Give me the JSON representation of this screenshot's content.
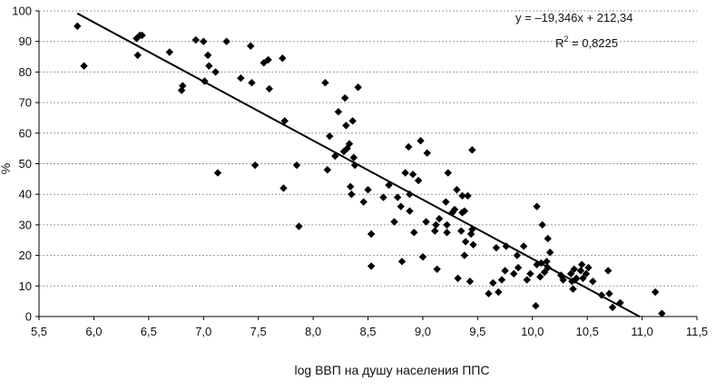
{
  "chart_data": {
    "type": "scatter",
    "xlabel": "log ВВП на душу населения ППС",
    "ylabel": "%",
    "xlim": [
      5.5,
      11.5
    ],
    "ylim": [
      0,
      100
    ],
    "x_ticks": [
      "5,5",
      "6,0",
      "6,5",
      "7,0",
      "7,5",
      "8,0",
      "8,5",
      "9,0",
      "9,5",
      "10,0",
      "10,5",
      "11,0",
      "11,5"
    ],
    "y_ticks": [
      "0",
      "10",
      "20",
      "30",
      "40",
      "50",
      "60",
      "70",
      "80",
      "90",
      "100"
    ],
    "grid": "horizontal dashed",
    "marker": "diamond",
    "trendline": {
      "slope": -19.346,
      "intercept": 212.34,
      "x_range": [
        5.85,
        10.98
      ]
    },
    "equation_text": "y = –19,346x + 212,34",
    "r2_text": "R",
    "r2_sup": "2",
    "r2_value": " = 0,8225",
    "points": [
      [
        5.85,
        95
      ],
      [
        5.91,
        82
      ],
      [
        6.39,
        91
      ],
      [
        6.4,
        85.5
      ],
      [
        6.42,
        92
      ],
      [
        6.44,
        92
      ],
      [
        6.69,
        86.5
      ],
      [
        6.8,
        74
      ],
      [
        6.81,
        75.5
      ],
      [
        6.93,
        90.5
      ],
      [
        7.0,
        90
      ],
      [
        7.01,
        77
      ],
      [
        7.04,
        85.5
      ],
      [
        7.05,
        82
      ],
      [
        7.11,
        80
      ],
      [
        7.13,
        47
      ],
      [
        7.21,
        90
      ],
      [
        7.34,
        78
      ],
      [
        7.43,
        88.5
      ],
      [
        7.44,
        76.5
      ],
      [
        7.47,
        49.5
      ],
      [
        7.55,
        83
      ],
      [
        7.59,
        84
      ],
      [
        7.6,
        74.5
      ],
      [
        7.72,
        84.5
      ],
      [
        7.73,
        42
      ],
      [
        7.74,
        64
      ],
      [
        7.85,
        49.5
      ],
      [
        7.87,
        29.5
      ],
      [
        8.11,
        76.5
      ],
      [
        8.13,
        48
      ],
      [
        8.15,
        59
      ],
      [
        8.2,
        52.5
      ],
      [
        8.23,
        67
      ],
      [
        8.28,
        54
      ],
      [
        8.29,
        71.5
      ],
      [
        8.3,
        62.5
      ],
      [
        8.31,
        55
      ],
      [
        8.33,
        56.5
      ],
      [
        8.34,
        42.5
      ],
      [
        8.35,
        40
      ],
      [
        8.36,
        64
      ],
      [
        8.37,
        52
      ],
      [
        8.38,
        49.5
      ],
      [
        8.41,
        75
      ],
      [
        8.46,
        37.5
      ],
      [
        8.5,
        41.5
      ],
      [
        8.53,
        27
      ],
      [
        8.53,
        16.5
      ],
      [
        8.64,
        39
      ],
      [
        8.69,
        43
      ],
      [
        8.74,
        31
      ],
      [
        8.77,
        39
      ],
      [
        8.8,
        36
      ],
      [
        8.81,
        18
      ],
      [
        8.84,
        47
      ],
      [
        8.87,
        55.5
      ],
      [
        8.88,
        40
      ],
      [
        8.88,
        34.5
      ],
      [
        8.91,
        46.5
      ],
      [
        8.92,
        27.5
      ],
      [
        8.96,
        44.5
      ],
      [
        8.98,
        57.5
      ],
      [
        9.0,
        19.5
      ],
      [
        9.03,
        31
      ],
      [
        9.04,
        53.5
      ],
      [
        9.11,
        28
      ],
      [
        9.12,
        30
      ],
      [
        9.13,
        15.5
      ],
      [
        9.15,
        32
      ],
      [
        9.21,
        37.5
      ],
      [
        9.22,
        27.5
      ],
      [
        9.22,
        30
      ],
      [
        9.23,
        47
      ],
      [
        9.27,
        34
      ],
      [
        9.29,
        35
      ],
      [
        9.31,
        41.5
      ],
      [
        9.32,
        12.5
      ],
      [
        9.35,
        28
      ],
      [
        9.36,
        34
      ],
      [
        9.36,
        39.5
      ],
      [
        9.38,
        20
      ],
      [
        9.38,
        34.5
      ],
      [
        9.39,
        24.5
      ],
      [
        9.41,
        39.5
      ],
      [
        9.43,
        11.5
      ],
      [
        9.44,
        27
      ],
      [
        9.45,
        54.5
      ],
      [
        9.45,
        28.5
      ],
      [
        9.46,
        23.5
      ],
      [
        9.6,
        7.5
      ],
      [
        9.64,
        11
      ],
      [
        9.67,
        22.5
      ],
      [
        9.69,
        8
      ],
      [
        9.72,
        12
      ],
      [
        9.75,
        15
      ],
      [
        9.76,
        23
      ],
      [
        9.83,
        14
      ],
      [
        9.86,
        20
      ],
      [
        9.87,
        16
      ],
      [
        9.92,
        23
      ],
      [
        9.95,
        12
      ],
      [
        9.98,
        14
      ],
      [
        10.03,
        3.5
      ],
      [
        10.04,
        36
      ],
      [
        10.04,
        17
      ],
      [
        10.07,
        13
      ],
      [
        10.08,
        17.5
      ],
      [
        10.09,
        30
      ],
      [
        10.11,
        14.5
      ],
      [
        10.13,
        18
      ],
      [
        10.14,
        25.5
      ],
      [
        10.14,
        16
      ],
      [
        10.16,
        21
      ],
      [
        10.26,
        13.5
      ],
      [
        10.28,
        12
      ],
      [
        10.35,
        14
      ],
      [
        10.36,
        11.5
      ],
      [
        10.37,
        9
      ],
      [
        10.38,
        15.5
      ],
      [
        10.39,
        12
      ],
      [
        10.4,
        12.5
      ],
      [
        10.44,
        15
      ],
      [
        10.45,
        17
      ],
      [
        10.46,
        12.5
      ],
      [
        10.49,
        14
      ],
      [
        10.51,
        16
      ],
      [
        10.55,
        11.5
      ],
      [
        10.63,
        7
      ],
      [
        10.69,
        15
      ],
      [
        10.7,
        7.5
      ],
      [
        10.73,
        3
      ],
      [
        10.8,
        4.5
      ],
      [
        11.12,
        8
      ],
      [
        11.18,
        1
      ]
    ]
  }
}
